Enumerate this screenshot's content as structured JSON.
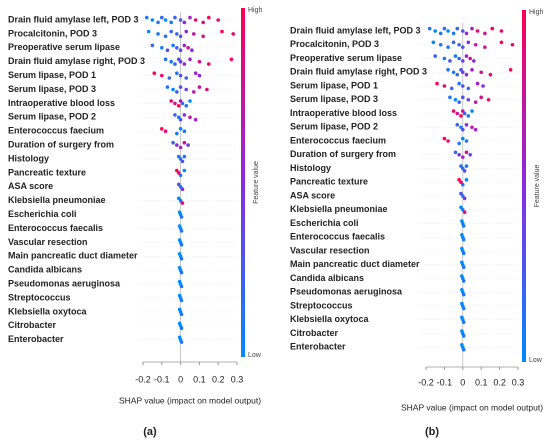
{
  "chart_data": [
    {
      "type": "beeswarm",
      "caption": "(a)",
      "xlabel": "SHAP value (impact on model output)",
      "colorbar_label": "Feature value",
      "colorbar_high": "High",
      "colorbar_low": "Low",
      "colors": [
        "#008afb",
        "#8a2be2",
        "#ff0052"
      ],
      "xlim": [
        -0.2,
        0.3
      ],
      "xticks": [
        -0.2,
        -0.1,
        0.0,
        0.1,
        0.2,
        0.3
      ],
      "series": [
        {
          "name": "Drain fluid amylase left, POD 3",
          "values": [
            -0.18,
            -0.15,
            -0.12,
            -0.1,
            -0.08,
            -0.05,
            -0.03,
            0.0,
            0.02,
            0.05,
            0.08,
            0.12,
            0.15,
            0.2
          ],
          "feature_values": [
            0.1,
            0,
            0.1,
            0.2,
            0,
            0.1,
            0.2,
            0.3,
            0.5,
            0.6,
            0.9,
            0.8,
            1,
            0.9
          ]
        },
        {
          "name": "Procalcitonin, POD 3",
          "values": [
            -0.17,
            -0.12,
            -0.08,
            -0.05,
            -0.02,
            0.0,
            0.03,
            0.07,
            0.12,
            0.22,
            0.28
          ],
          "feature_values": [
            0,
            0.1,
            0.1,
            0.2,
            0.2,
            0.3,
            0.5,
            0.7,
            0.8,
            1,
            0.9
          ]
        },
        {
          "name": "Preoperative serum lipase",
          "values": [
            -0.15,
            -0.1,
            -0.07,
            -0.04,
            -0.02,
            0.0,
            0.02,
            0.04,
            0.06
          ],
          "feature_values": [
            0.2,
            0.1,
            0.3,
            0.1,
            0.2,
            0.4,
            0.6,
            0.8,
            0.5
          ]
        },
        {
          "name": "Drain fluid amylase right, POD 3",
          "values": [
            -0.08,
            -0.05,
            -0.03,
            -0.01,
            0.0,
            0.02,
            0.05,
            0.1,
            0.15,
            0.27
          ],
          "feature_values": [
            0.1,
            0.1,
            0.2,
            0.3,
            0.4,
            0.5,
            0.6,
            0.8,
            0.9,
            1
          ]
        },
        {
          "name": "Serum lipase, POD 1",
          "values": [
            -0.14,
            -0.1,
            -0.06,
            -0.02,
            0.0,
            0.03,
            0.08,
            0.1
          ],
          "feature_values": [
            1,
            0.9,
            0.2,
            0.1,
            0.3,
            0.2,
            0.6,
            0.5
          ]
        },
        {
          "name": "Serum lipase, POD 3",
          "values": [
            -0.07,
            -0.04,
            -0.02,
            0.0,
            0.03,
            0.07,
            0.1,
            0.14
          ],
          "feature_values": [
            0.1,
            0,
            0.2,
            0.3,
            0.4,
            0.7,
            0.8,
            0.9
          ]
        },
        {
          "name": "Intraoperative blood loss",
          "values": [
            -0.05,
            -0.03,
            -0.01,
            0.0,
            0.01,
            0.03,
            0.05
          ],
          "feature_values": [
            0.9,
            0.8,
            1,
            0.7,
            0.2,
            0.1,
            0
          ]
        },
        {
          "name": "Serum lipase, POD 2",
          "values": [
            -0.03,
            -0.01,
            0.0,
            0.02,
            0.05,
            0.08
          ],
          "feature_values": [
            0.2,
            0.1,
            0.3,
            0.5,
            0.7,
            0.6
          ]
        },
        {
          "name": "Enterococcus faecium",
          "values": [
            -0.1,
            -0.08,
            -0.02,
            0.0,
            0.02
          ],
          "feature_values": [
            1,
            0.9,
            0.1,
            0,
            0.1
          ]
        },
        {
          "name": "Duration of surgery from",
          "values": [
            -0.04,
            -0.02,
            0.0,
            0.02,
            0.04
          ],
          "feature_values": [
            0.2,
            0.5,
            0.6,
            0.8,
            0.4
          ]
        },
        {
          "name": "Histology",
          "values": [
            -0.01,
            0.0,
            0.01,
            0.02
          ],
          "feature_values": [
            0.1,
            0.2,
            0.3,
            0.1
          ]
        },
        {
          "name": "Pancreatic texture",
          "values": [
            -0.02,
            -0.01,
            0.0,
            0.02
          ],
          "feature_values": [
            1,
            0.9,
            0.1,
            0
          ]
        },
        {
          "name": "ASA score",
          "values": [
            -0.01,
            0.0,
            0.01
          ],
          "feature_values": [
            0.3,
            0.1,
            0.5
          ]
        },
        {
          "name": "Klebsiella pneumoniae",
          "values": [
            -0.01,
            0.0,
            0.01
          ],
          "feature_values": [
            0,
            0.1,
            0.9
          ]
        },
        {
          "name": "Escherichia coli",
          "values": [
            -0.005,
            0.0,
            0.005
          ],
          "feature_values": [
            0,
            0,
            0.1
          ]
        },
        {
          "name": "Enterococcus faecalis",
          "values": [
            -0.005,
            0.0,
            0.005
          ],
          "feature_values": [
            0,
            0,
            0.1
          ]
        },
        {
          "name": "Vascular resection",
          "values": [
            -0.005,
            0.0,
            0.005
          ],
          "feature_values": [
            0,
            0,
            0.1
          ]
        },
        {
          "name": "Main pancreatic duct diameter",
          "values": [
            -0.005,
            0.0,
            0.005
          ],
          "feature_values": [
            0,
            0,
            0.1
          ]
        },
        {
          "name": "Candida albicans",
          "values": [
            -0.005,
            0.0,
            0.005
          ],
          "feature_values": [
            0,
            0,
            0.1
          ]
        },
        {
          "name": "Pseudomonas aeruginosa",
          "values": [
            -0.005,
            0.0,
            0.005
          ],
          "feature_values": [
            0,
            0,
            0.1
          ]
        },
        {
          "name": "Streptococcus",
          "values": [
            -0.005,
            0.0,
            0.005
          ],
          "feature_values": [
            0,
            0,
            0.1
          ]
        },
        {
          "name": "Klebsiella oxytoca",
          "values": [
            -0.005,
            0.0,
            0.005
          ],
          "feature_values": [
            0,
            0,
            0.1
          ]
        },
        {
          "name": "Citrobacter",
          "values": [
            -0.005,
            0.0,
            0.005
          ],
          "feature_values": [
            0,
            0,
            0.1
          ]
        },
        {
          "name": "Enterobacter",
          "values": [
            -0.005,
            0.0,
            0.005
          ],
          "feature_values": [
            0,
            0,
            0.1
          ]
        }
      ]
    },
    {
      "type": "beeswarm",
      "caption": "(b)",
      "xlabel": "SHAP value (impact on model output)",
      "colorbar_label": "Feature value",
      "colorbar_high": "High",
      "colorbar_low": "Low",
      "colors": [
        "#008afb",
        "#8a2be2",
        "#ff0052"
      ],
      "xlim": [
        -0.2,
        0.3
      ],
      "xticks": [
        -0.2,
        -0.1,
        0.0,
        0.1,
        0.2,
        0.3
      ],
      "series": [
        {
          "name": "Drain fluid amylase left, POD 3",
          "values": [
            -0.18,
            -0.15,
            -0.12,
            -0.1,
            -0.08,
            -0.05,
            -0.03,
            0.0,
            0.02,
            0.05,
            0.08,
            0.12,
            0.16,
            0.21
          ],
          "feature_values": [
            0.1,
            0,
            0.1,
            0.2,
            0,
            0.1,
            0.2,
            0.3,
            0.5,
            0.6,
            0.9,
            0.8,
            1,
            0.9
          ]
        },
        {
          "name": "Procalcitonin, POD 3",
          "values": [
            -0.16,
            -0.12,
            -0.08,
            -0.05,
            -0.02,
            0.0,
            0.03,
            0.07,
            0.12,
            0.21,
            0.27
          ],
          "feature_values": [
            0,
            0.1,
            0.1,
            0.2,
            0.2,
            0.3,
            0.5,
            0.7,
            0.8,
            1,
            0.9
          ]
        },
        {
          "name": "Preoperative serum lipase",
          "values": [
            -0.15,
            -0.1,
            -0.07,
            -0.04,
            -0.02,
            0.0,
            0.02,
            0.04,
            0.06
          ],
          "feature_values": [
            0.2,
            0.1,
            0.3,
            0.1,
            0.2,
            0.4,
            0.6,
            0.8,
            0.5
          ]
        },
        {
          "name": "Drain fluid amylase right, POD 3",
          "values": [
            -0.08,
            -0.05,
            -0.03,
            -0.01,
            0.0,
            0.02,
            0.05,
            0.1,
            0.15,
            0.26
          ],
          "feature_values": [
            0.1,
            0.1,
            0.2,
            0.3,
            0.4,
            0.5,
            0.6,
            0.8,
            0.9,
            1
          ]
        },
        {
          "name": "Serum lipase, POD 1",
          "values": [
            -0.14,
            -0.1,
            -0.06,
            -0.02,
            0.0,
            0.03,
            0.08,
            0.11
          ],
          "feature_values": [
            1,
            0.9,
            0.2,
            0.1,
            0.3,
            0.2,
            0.6,
            0.5
          ]
        },
        {
          "name": "Serum lipase, POD 3",
          "values": [
            -0.07,
            -0.04,
            -0.02,
            0.0,
            0.03,
            0.07,
            0.1,
            0.14
          ],
          "feature_values": [
            0.1,
            0,
            0.2,
            0.3,
            0.4,
            0.7,
            0.8,
            0.9
          ]
        },
        {
          "name": "Intraoperative blood loss",
          "values": [
            -0.05,
            -0.03,
            -0.01,
            0.0,
            0.01,
            0.03,
            0.05
          ],
          "feature_values": [
            0.9,
            0.8,
            1,
            0.7,
            0.2,
            0.1,
            0
          ]
        },
        {
          "name": "Serum lipase, POD 2",
          "values": [
            -0.03,
            -0.01,
            0.0,
            0.02,
            0.05,
            0.07
          ],
          "feature_values": [
            0.2,
            0.1,
            0.3,
            0.5,
            0.7,
            0.6
          ]
        },
        {
          "name": "Enterococcus faecium",
          "values": [
            -0.1,
            -0.08,
            -0.02,
            0.0,
            0.02
          ],
          "feature_values": [
            1,
            0.9,
            0.1,
            0,
            0.1
          ]
        },
        {
          "name": "Duration of surgery from",
          "values": [
            -0.04,
            -0.02,
            0.0,
            0.02,
            0.04
          ],
          "feature_values": [
            0.2,
            0.5,
            0.6,
            0.8,
            0.4
          ]
        },
        {
          "name": "Histology",
          "values": [
            -0.01,
            0.0,
            0.01,
            0.02
          ],
          "feature_values": [
            0.1,
            0.2,
            0.3,
            0.1
          ]
        },
        {
          "name": "Pancreatic texture",
          "values": [
            -0.02,
            -0.01,
            0.0,
            0.02
          ],
          "feature_values": [
            1,
            0.9,
            0.1,
            0
          ]
        },
        {
          "name": "ASA score",
          "values": [
            -0.01,
            0.0,
            0.01
          ],
          "feature_values": [
            0.3,
            0.1,
            0.5
          ]
        },
        {
          "name": "Klebsiella pneumoniae",
          "values": [
            -0.01,
            0.0,
            0.01
          ],
          "feature_values": [
            0,
            0.1,
            0.9
          ]
        },
        {
          "name": "Escherichia coli",
          "values": [
            -0.005,
            0.0,
            0.005
          ],
          "feature_values": [
            0,
            0,
            0.1
          ]
        },
        {
          "name": "Enterococcus faecalis",
          "values": [
            -0.005,
            0.0,
            0.005
          ],
          "feature_values": [
            0,
            0,
            0.1
          ]
        },
        {
          "name": "Vascular resection",
          "values": [
            -0.005,
            0.0,
            0.005
          ],
          "feature_values": [
            0,
            0,
            0.1
          ]
        },
        {
          "name": "Main pancreatic duct diameter",
          "values": [
            -0.005,
            0.0,
            0.005
          ],
          "feature_values": [
            0,
            0,
            0.1
          ]
        },
        {
          "name": "Candida albicans",
          "values": [
            -0.005,
            0.0,
            0.005
          ],
          "feature_values": [
            0,
            0,
            0.1
          ]
        },
        {
          "name": "Pseudomonas aeruginosa",
          "values": [
            -0.005,
            0.0,
            0.005
          ],
          "feature_values": [
            0,
            0,
            0.1
          ]
        },
        {
          "name": "Streptococcus",
          "values": [
            -0.005,
            0.0,
            0.005
          ],
          "feature_values": [
            0,
            0,
            0.1
          ]
        },
        {
          "name": "Klebsiella oxytoca",
          "values": [
            -0.005,
            0.0,
            0.005
          ],
          "feature_values": [
            0,
            0,
            0.1
          ]
        },
        {
          "name": "Citrobacter",
          "values": [
            -0.005,
            0.0,
            0.005
          ],
          "feature_values": [
            0,
            0,
            0.1
          ]
        },
        {
          "name": "Enterobacter",
          "values": [
            -0.005,
            0.0,
            0.005
          ],
          "feature_values": [
            0,
            0,
            0.1
          ]
        }
      ]
    }
  ]
}
